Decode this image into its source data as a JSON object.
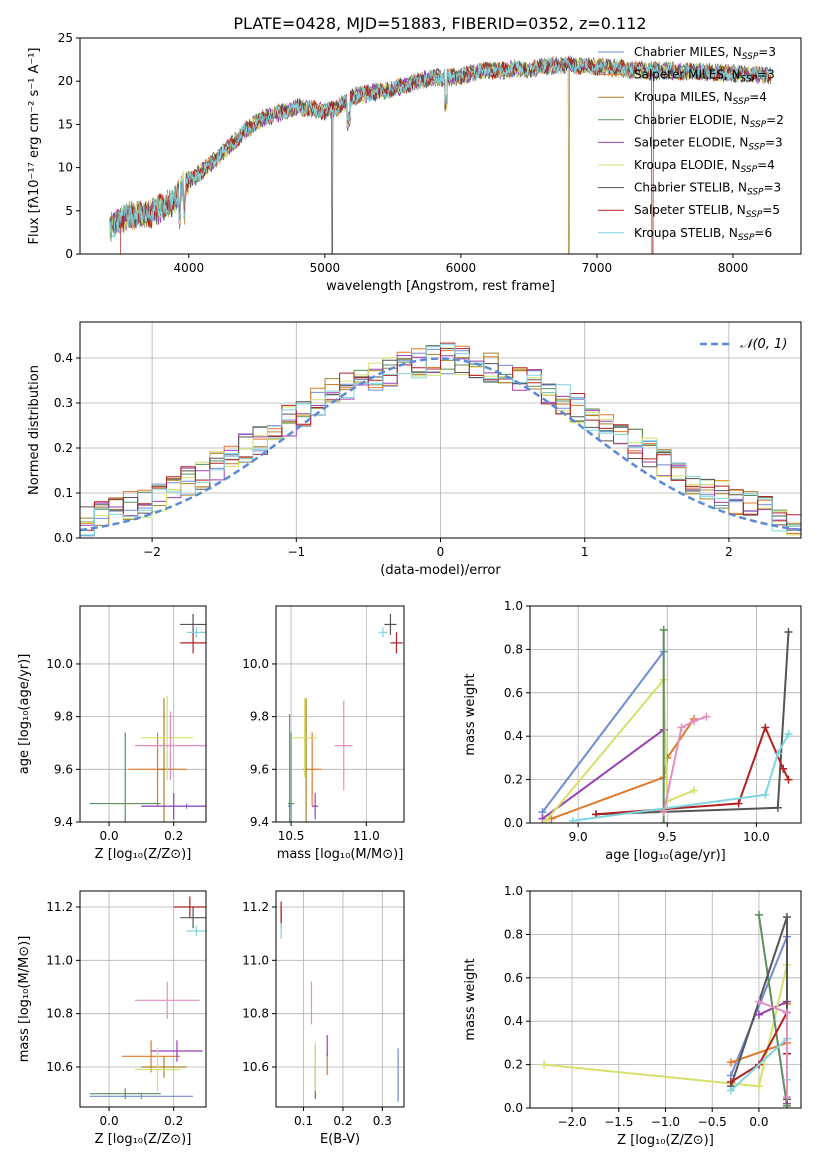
{
  "title": "PLATE=0428, MJD=51883, FIBERID=0352, z=0.112",
  "colors": {
    "c1": "#6f8bd8",
    "c2": "#e07a2b",
    "c3": "#a8822a",
    "c4": "#5b8f5b",
    "c5": "#9b3fb3",
    "c6": "#d6e06a",
    "c7": "#555555",
    "c8": "#b22222",
    "c9": "#7fd6e0",
    "pink": "#e58fc0",
    "grid": "#b0b0b0"
  },
  "chart_data": [
    {
      "id": "spectrum",
      "type": "line",
      "xlabel": "wavelength [Angstrom, rest frame]",
      "ylabel": "Flux [fλ10⁻¹⁷ erg cm⁻² s⁻¹ A⁻¹]",
      "xlim": [
        3200,
        8500
      ],
      "ylim": [
        0,
        25
      ],
      "xticks": [
        "4000",
        "5000",
        "6000",
        "7000",
        "8000"
      ],
      "yticks": [
        "0",
        "5",
        "10",
        "15",
        "20",
        "25"
      ],
      "grid": false,
      "legend_position": "right",
      "legend": [
        {
          "label": "Chabrier MILES, N",
          "sub": "SSP",
          "tail": "=3"
        },
        {
          "label": "Salpeter MILES, N",
          "sub": "SSP",
          "tail": "=3"
        },
        {
          "label": "Kroupa MILES, N",
          "sub": "SSP",
          "tail": "=4"
        },
        {
          "label": "Chabrier ELODIE, N",
          "sub": "SSP",
          "tail": "=2"
        },
        {
          "label": "Salpeter ELODIE, N",
          "sub": "SSP",
          "tail": "=3"
        },
        {
          "label": "Kroupa ELODIE, N",
          "sub": "SSP",
          "tail": "=4"
        },
        {
          "label": "Chabrier STELIB, N",
          "sub": "SSP",
          "tail": "=3"
        },
        {
          "label": "Salpeter STELIB, N",
          "sub": "SSP",
          "tail": "=5"
        },
        {
          "label": "Kroupa STELIB, N",
          "sub": "SSP",
          "tail": "=6"
        }
      ],
      "continuum": [
        [
          3420,
          3.0
        ],
        [
          3550,
          4.5
        ],
        [
          3700,
          4.6
        ],
        [
          3800,
          5.3
        ],
        [
          3900,
          6.2
        ],
        [
          3950,
          7.8
        ],
        [
          4050,
          9.0
        ],
        [
          4200,
          11.0
        ],
        [
          4300,
          12.5
        ],
        [
          4400,
          14.0
        ],
        [
          4500,
          15.3
        ],
        [
          4600,
          16.0
        ],
        [
          4700,
          16.5
        ],
        [
          4800,
          17.0
        ],
        [
          4900,
          16.8
        ],
        [
          5000,
          16.5
        ],
        [
          5100,
          17.0
        ],
        [
          5200,
          18.2
        ],
        [
          5300,
          18.5
        ],
        [
          5400,
          18.8
        ],
        [
          5500,
          19.1
        ],
        [
          5600,
          19.6
        ],
        [
          5700,
          20.1
        ],
        [
          5800,
          20.4
        ],
        [
          5900,
          20.5
        ],
        [
          6000,
          20.6
        ],
        [
          6100,
          21.0
        ],
        [
          6200,
          21.3
        ],
        [
          6300,
          21.2
        ],
        [
          6400,
          21.5
        ],
        [
          6500,
          21.2
        ],
        [
          6600,
          21.8
        ],
        [
          6700,
          21.8
        ],
        [
          6800,
          21.9
        ],
        [
          6900,
          21.7
        ],
        [
          7000,
          21.7
        ],
        [
          7100,
          21.6
        ],
        [
          7200,
          21.4
        ],
        [
          7300,
          21.3
        ],
        [
          7400,
          21.2
        ],
        [
          7500,
          21.2
        ],
        [
          7700,
          21.1
        ],
        [
          7900,
          21.0
        ],
        [
          8100,
          20.8
        ],
        [
          8280,
          20.7
        ]
      ]
    },
    {
      "id": "histogram",
      "type": "bar",
      "xlabel": "(data-model)/error",
      "ylabel": "Normed distribution",
      "xlim": [
        -2.5,
        2.5
      ],
      "ylim": [
        0,
        0.48
      ],
      "xticks": [
        "−2",
        "−1",
        "0",
        "1",
        "2"
      ],
      "yticks": [
        "0.0",
        "0.1",
        "0.2",
        "0.3",
        "0.4"
      ],
      "grid": true,
      "legend_position": "top-right",
      "legend_label": "𝒩(0, 1)",
      "bin_width": 0.1,
      "x_start": -2.5,
      "base_values": [
        0.04,
        0.05,
        0.06,
        0.07,
        0.08,
        0.09,
        0.11,
        0.13,
        0.14,
        0.16,
        0.18,
        0.2,
        0.22,
        0.24,
        0.26,
        0.28,
        0.3,
        0.32,
        0.34,
        0.35,
        0.36,
        0.37,
        0.38,
        0.39,
        0.395,
        0.4,
        0.395,
        0.39,
        0.38,
        0.37,
        0.36,
        0.35,
        0.33,
        0.31,
        0.29,
        0.27,
        0.25,
        0.23,
        0.21,
        0.19,
        0.17,
        0.15,
        0.13,
        0.11,
        0.1,
        0.08,
        0.07,
        0.06,
        0.05,
        0.04
      ]
    },
    {
      "id": "age-vs-z",
      "type": "scatter",
      "xlabel": "Z [log₁₀(Z/Z⊙)]",
      "ylabel": "age  [log₁₀(age/yr)]",
      "xlim": [
        -0.09,
        0.3
      ],
      "ylim": [
        9.4,
        10.22
      ],
      "xticks": [
        "0.0",
        "0.2"
      ],
      "yticks": [
        "9.4",
        "9.6",
        "9.8",
        "10.0"
      ],
      "grid": true,
      "points": [
        {
          "c": "c1",
          "x": 0.24,
          "xe": 0.14,
          "y": 9.46,
          "ye": 0.01
        },
        {
          "c": "c2",
          "x": 0.15,
          "xe": 0.09,
          "y": 9.6,
          "ye": 0.14
        },
        {
          "c": "c3",
          "x": 0.17,
          "xe": 0.02,
          "y": 9.6,
          "ye": 0.27
        },
        {
          "c": "c4",
          "x": 0.05,
          "xe": 0.11,
          "y": 9.47,
          "ye": 0.27
        },
        {
          "c": "c5",
          "x": 0.2,
          "xe": 0.1,
          "y": 9.46,
          "ye": 0.05
        },
        {
          "c": "c6",
          "x": 0.18,
          "xe": 0.08,
          "y": 9.72,
          "ye": 0.16
        },
        {
          "c": "c7",
          "x": 0.26,
          "xe": 0.04,
          "y": 10.15,
          "ye": 0.04
        },
        {
          "c": "c8",
          "x": 0.26,
          "xe": 0.04,
          "y": 10.08,
          "ye": 0.04
        },
        {
          "c": "c9",
          "x": 0.27,
          "xe": 0.03,
          "y": 10.12,
          "ye": 0.02
        },
        {
          "c": "pink",
          "x": 0.19,
          "xe": 0.11,
          "y": 9.69,
          "ye": 0.13
        }
      ]
    },
    {
      "id": "age-vs-mass",
      "type": "scatter",
      "xlabel": "mass [log₁₀(M/M⊙)]",
      "ylabel": "",
      "xlim": [
        10.4,
        11.25
      ],
      "ylim": [
        9.4,
        10.22
      ],
      "xticks": [
        "10.5",
        "11.0"
      ],
      "yticks": [
        "9.4",
        "9.6",
        "9.8",
        "10.0"
      ],
      "grid": true,
      "points": [
        {
          "c": "c1",
          "x": 10.49,
          "xe": 0.01,
          "y": 9.46,
          "ye": 0.35
        },
        {
          "c": "c2",
          "x": 10.64,
          "xe": 0.06,
          "y": 9.6,
          "ye": 0.14
        },
        {
          "c": "c3",
          "x": 10.6,
          "xe": 0.01,
          "y": 9.6,
          "ye": 0.27
        },
        {
          "c": "c4",
          "x": 10.5,
          "xe": 0.02,
          "y": 9.47,
          "ye": 0.27
        },
        {
          "c": "c5",
          "x": 10.66,
          "xe": 0.02,
          "y": 9.46,
          "ye": 0.05
        },
        {
          "c": "c6",
          "x": 10.59,
          "xe": 0.08,
          "y": 9.72,
          "ye": 0.15
        },
        {
          "c": "c7",
          "x": 11.16,
          "xe": 0.04,
          "y": 10.15,
          "ye": 0.04
        },
        {
          "c": "c8",
          "x": 11.2,
          "xe": 0.04,
          "y": 10.08,
          "ye": 0.04
        },
        {
          "c": "c9",
          "x": 11.11,
          "xe": 0.03,
          "y": 10.12,
          "ye": 0.02
        },
        {
          "c": "pink",
          "x": 10.85,
          "xe": 0.06,
          "y": 9.69,
          "ye": 0.17
        }
      ]
    },
    {
      "id": "weight-vs-age",
      "type": "line",
      "xlabel": "age  [log₁₀(age/yr)]",
      "ylabel": "mass weight",
      "xlim": [
        8.73,
        10.25
      ],
      "ylim": [
        0,
        1.0
      ],
      "xticks": [
        "9.0",
        "9.5",
        "10.0"
      ],
      "yticks": [
        "0.0",
        "0.2",
        "0.4",
        "0.6",
        "0.8",
        "1.0"
      ],
      "grid": true,
      "series": [
        {
          "c": "c1",
          "pts": [
            [
              8.8,
              0.05
            ],
            [
              9.48,
              0.79
            ]
          ]
        },
        {
          "c": "c2",
          "pts": [
            [
              8.85,
              0.02
            ],
            [
              9.48,
              0.21
            ],
            [
              9.5,
              0.3
            ],
            [
              9.65,
              0.48
            ]
          ]
        },
        {
          "c": "c5",
          "pts": [
            [
              8.8,
              0.02
            ],
            [
              9.48,
              0.43
            ]
          ]
        },
        {
          "c": "c6",
          "pts": [
            [
              8.82,
              0.01
            ],
            [
              9.48,
              0.66
            ],
            [
              9.5,
              0.1
            ],
            [
              9.65,
              0.15
            ]
          ]
        },
        {
          "c": "c4",
          "pts": [
            [
              9.48,
              0.89
            ],
            [
              9.48,
              0.0
            ]
          ]
        },
        {
          "c": "c7",
          "pts": [
            [
              9.1,
              0.04
            ],
            [
              10.12,
              0.07
            ],
            [
              10.18,
              0.88
            ]
          ]
        },
        {
          "c": "c8",
          "pts": [
            [
              9.1,
              0.04
            ],
            [
              9.9,
              0.09
            ],
            [
              10.05,
              0.44
            ],
            [
              10.15,
              0.25
            ],
            [
              10.18,
              0.2
            ]
          ]
        },
        {
          "c": "c9",
          "pts": [
            [
              8.97,
              0.01
            ],
            [
              10.05,
              0.13
            ],
            [
              10.12,
              0.32
            ],
            [
              10.18,
              0.41
            ]
          ]
        },
        {
          "c": "pink",
          "pts": [
            [
              9.48,
              0.05
            ],
            [
              9.58,
              0.44
            ],
            [
              9.65,
              0.47
            ],
            [
              9.72,
              0.49
            ]
          ]
        }
      ]
    },
    {
      "id": "mass-vs-z",
      "type": "scatter",
      "xlabel": "Z [log₁₀(Z/Z⊙)]",
      "ylabel": "mass [log₁₀(M/M⊙)]",
      "xlim": [
        -0.09,
        0.3
      ],
      "ylim": [
        10.45,
        11.26
      ],
      "xticks": [
        "0.0",
        "0.2"
      ],
      "yticks": [
        "10.6",
        "10.8",
        "11.0",
        "11.2"
      ],
      "grid": true,
      "points": [
        {
          "c": "c1",
          "x": 0.1,
          "xe": 0.16,
          "y": 10.49,
          "ye": 0.01
        },
        {
          "c": "c2",
          "x": 0.13,
          "xe": 0.09,
          "y": 10.64,
          "ye": 0.06
        },
        {
          "c": "c3",
          "x": 0.17,
          "xe": 0.07,
          "y": 10.6,
          "ye": 0.04
        },
        {
          "c": "c4",
          "x": 0.05,
          "xe": 0.11,
          "y": 10.5,
          "ye": 0.02
        },
        {
          "c": "c5",
          "x": 0.21,
          "xe": 0.08,
          "y": 10.66,
          "ye": 0.04
        },
        {
          "c": "c6",
          "x": 0.15,
          "xe": 0.07,
          "y": 10.59,
          "ye": 0.08
        },
        {
          "c": "c7",
          "x": 0.26,
          "xe": 0.04,
          "y": 11.16,
          "ye": 0.04
        },
        {
          "c": "c8",
          "x": 0.25,
          "xe": 0.05,
          "y": 11.2,
          "ye": 0.04
        },
        {
          "c": "c9",
          "x": 0.27,
          "xe": 0.03,
          "y": 11.11,
          "ye": 0.02
        },
        {
          "c": "pink",
          "x": 0.18,
          "xe": 0.1,
          "y": 10.85,
          "ye": 0.07
        }
      ]
    },
    {
      "id": "mass-vs-ebv",
      "type": "scatter",
      "xlabel": "E(B-V)",
      "ylabel": "",
      "xlim": [
        0.03,
        0.355
      ],
      "ylim": [
        10.45,
        11.26
      ],
      "xticks": [
        "0.1",
        "0.2",
        "0.3"
      ],
      "yticks": [
        "10.6",
        "10.8",
        "11.0",
        "11.2"
      ],
      "grid": true,
      "points": [
        {
          "c": "c1",
          "x": 0.34,
          "xe": 0.0,
          "y": 10.57,
          "ye": 0.1
        },
        {
          "c": "c2",
          "x": 0.16,
          "xe": 0.0,
          "y": 10.61,
          "ye": 0.04
        },
        {
          "c": "c3",
          "x": 0.13,
          "xe": 0.0,
          "y": 10.58,
          "ye": 0.1
        },
        {
          "c": "c4",
          "x": 0.13,
          "xe": 0.0,
          "y": 10.54,
          "ye": 0.06
        },
        {
          "c": "c5",
          "x": 0.16,
          "xe": 0.0,
          "y": 10.68,
          "ye": 0.04
        },
        {
          "c": "c6",
          "x": 0.13,
          "xe": 0.0,
          "y": 10.6,
          "ye": 0.09
        },
        {
          "c": "c7",
          "x": 0.043,
          "xe": 0.0,
          "y": 11.16,
          "ye": 0.04
        },
        {
          "c": "c8",
          "x": 0.043,
          "xe": 0.0,
          "y": 11.18,
          "ye": 0.04
        },
        {
          "c": "c9",
          "x": 0.043,
          "xe": 0.0,
          "y": 11.11,
          "ye": 0.03
        },
        {
          "c": "pink",
          "x": 0.12,
          "xe": 0.0,
          "y": 10.84,
          "ye": 0.08
        }
      ]
    },
    {
      "id": "weight-vs-z",
      "type": "line",
      "xlabel": "Z [log₁₀(Z/Z⊙)]",
      "ylabel": "mass weight",
      "xlim": [
        -2.45,
        0.45
      ],
      "ylim": [
        0,
        1.0
      ],
      "xticks": [
        "−2.0",
        "−1.5",
        "−1.0",
        "−0.5",
        "0.0"
      ],
      "yticks": [
        "0.0",
        "0.2",
        "0.4",
        "0.6",
        "0.8",
        "1.0"
      ],
      "grid": true,
      "series": [
        {
          "c": "c1",
          "pts": [
            [
              -0.3,
              0.15
            ],
            [
              0.3,
              0.79
            ],
            [
              0.3,
              0.05
            ]
          ]
        },
        {
          "c": "c2",
          "pts": [
            [
              -0.3,
              0.21
            ],
            [
              0.3,
              0.3
            ],
            [
              0.3,
              0.48
            ]
          ]
        },
        {
          "c": "c5",
          "pts": [
            [
              0.0,
              0.43
            ],
            [
              0.3,
              0.49
            ],
            [
              0.3,
              0.02
            ]
          ]
        },
        {
          "c": "c6",
          "pts": [
            [
              -2.3,
              0.2
            ],
            [
              0.0,
              0.1
            ],
            [
              0.3,
              0.66
            ]
          ]
        },
        {
          "c": "c4",
          "pts": [
            [
              0.0,
              0.89
            ],
            [
              0.3,
              0.01
            ]
          ]
        },
        {
          "c": "c7",
          "pts": [
            [
              -0.3,
              0.1
            ],
            [
              0.3,
              0.88
            ],
            [
              0.3,
              0.04
            ]
          ]
        },
        {
          "c": "c8",
          "pts": [
            [
              -0.3,
              0.12
            ],
            [
              0.0,
              0.2
            ],
            [
              0.3,
              0.44
            ],
            [
              0.3,
              0.25
            ]
          ]
        },
        {
          "c": "c9",
          "pts": [
            [
              -0.3,
              0.08
            ],
            [
              0.3,
              0.32
            ],
            [
              0.3,
              0.13
            ]
          ]
        },
        {
          "c": "pink",
          "pts": [
            [
              0.0,
              0.49
            ],
            [
              0.3,
              0.44
            ],
            [
              0.3,
              0.05
            ]
          ]
        }
      ]
    }
  ]
}
